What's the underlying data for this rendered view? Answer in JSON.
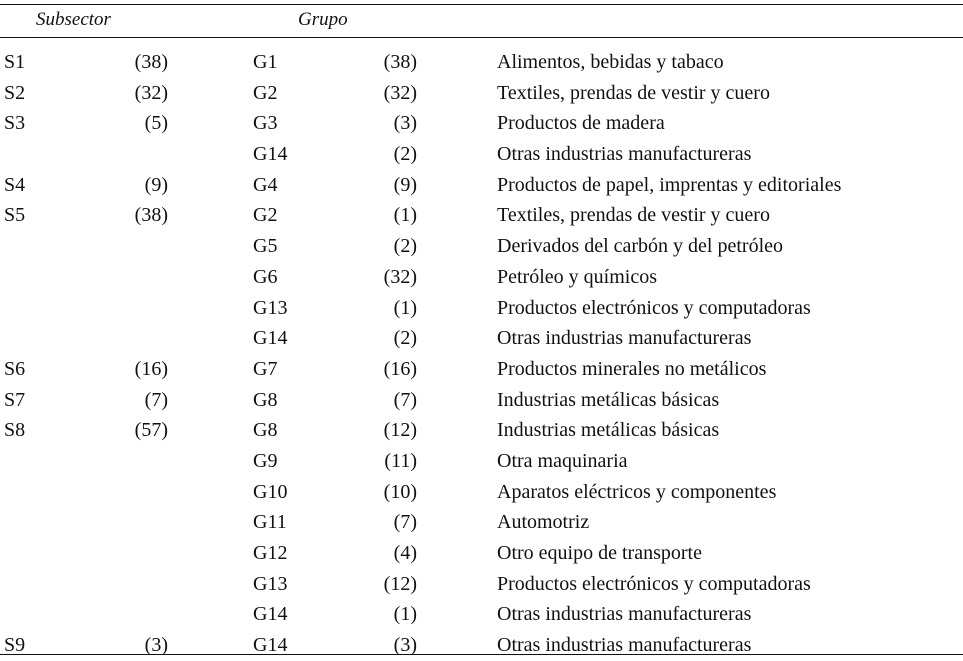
{
  "headers": {
    "subsector": "Subsector",
    "grupo": "Grupo"
  },
  "rows": [
    {
      "subsector": "S1",
      "subsector_count": "(38)",
      "grupo": "G1",
      "grupo_count": "(38)",
      "description": "Alimentos, bebidas y tabaco"
    },
    {
      "subsector": "S2",
      "subsector_count": "(32)",
      "grupo": "G2",
      "grupo_count": "(32)",
      "description": "Textiles, prendas de vestir y cuero"
    },
    {
      "subsector": "S3",
      "subsector_count": "(5)",
      "grupo": "G3",
      "grupo_count": "(3)",
      "description": "Productos de madera"
    },
    {
      "subsector": "",
      "subsector_count": "",
      "grupo": "G14",
      "grupo_count": "(2)",
      "description": "Otras industrias manufactureras"
    },
    {
      "subsector": "S4",
      "subsector_count": "(9)",
      "grupo": "G4",
      "grupo_count": "(9)",
      "description": "Productos de papel, imprentas y editoriales"
    },
    {
      "subsector": "S5",
      "subsector_count": "(38)",
      "grupo": "G2",
      "grupo_count": "(1)",
      "description": "Textiles, prendas de vestir y cuero"
    },
    {
      "subsector": "",
      "subsector_count": "",
      "grupo": "G5",
      "grupo_count": "(2)",
      "description": "Derivados del carbón y del petróleo"
    },
    {
      "subsector": "",
      "subsector_count": "",
      "grupo": "G6",
      "grupo_count": "(32)",
      "description": "Petróleo y químicos"
    },
    {
      "subsector": "",
      "subsector_count": "",
      "grupo": "G13",
      "grupo_count": "(1)",
      "description": "Productos electrónicos y computadoras"
    },
    {
      "subsector": "",
      "subsector_count": "",
      "grupo": "G14",
      "grupo_count": "(2)",
      "description": "Otras industrias manufactureras"
    },
    {
      "subsector": "S6",
      "subsector_count": "(16)",
      "grupo": "G7",
      "grupo_count": "(16)",
      "description": "Productos minerales no metálicos"
    },
    {
      "subsector": "S7",
      "subsector_count": "(7)",
      "grupo": "G8",
      "grupo_count": "(7)",
      "description": "Industrias metálicas básicas"
    },
    {
      "subsector": "S8",
      "subsector_count": "(57)",
      "grupo": "G8",
      "grupo_count": "(12)",
      "description": "Industrias metálicas básicas"
    },
    {
      "subsector": "",
      "subsector_count": "",
      "grupo": "G9",
      "grupo_count": "(11)",
      "description": "Otra maquinaria"
    },
    {
      "subsector": "",
      "subsector_count": "",
      "grupo": "G10",
      "grupo_count": "(10)",
      "description": "Aparatos eléctricos y componentes"
    },
    {
      "subsector": "",
      "subsector_count": "",
      "grupo": "G11",
      "grupo_count": "(7)",
      "description": "Automotriz"
    },
    {
      "subsector": "",
      "subsector_count": "",
      "grupo": "G12",
      "grupo_count": "(4)",
      "description": "Otro equipo de transporte"
    },
    {
      "subsector": "",
      "subsector_count": "",
      "grupo": "G13",
      "grupo_count": "(12)",
      "description": "Productos electrónicos y computadoras"
    },
    {
      "subsector": "",
      "subsector_count": "",
      "grupo": "G14",
      "grupo_count": "(1)",
      "description": "Otras industrias manufactureras"
    },
    {
      "subsector": "S9",
      "subsector_count": "(3)",
      "grupo": "G14",
      "grupo_count": "(3)",
      "description": "Otras industrias manufactureras"
    }
  ]
}
